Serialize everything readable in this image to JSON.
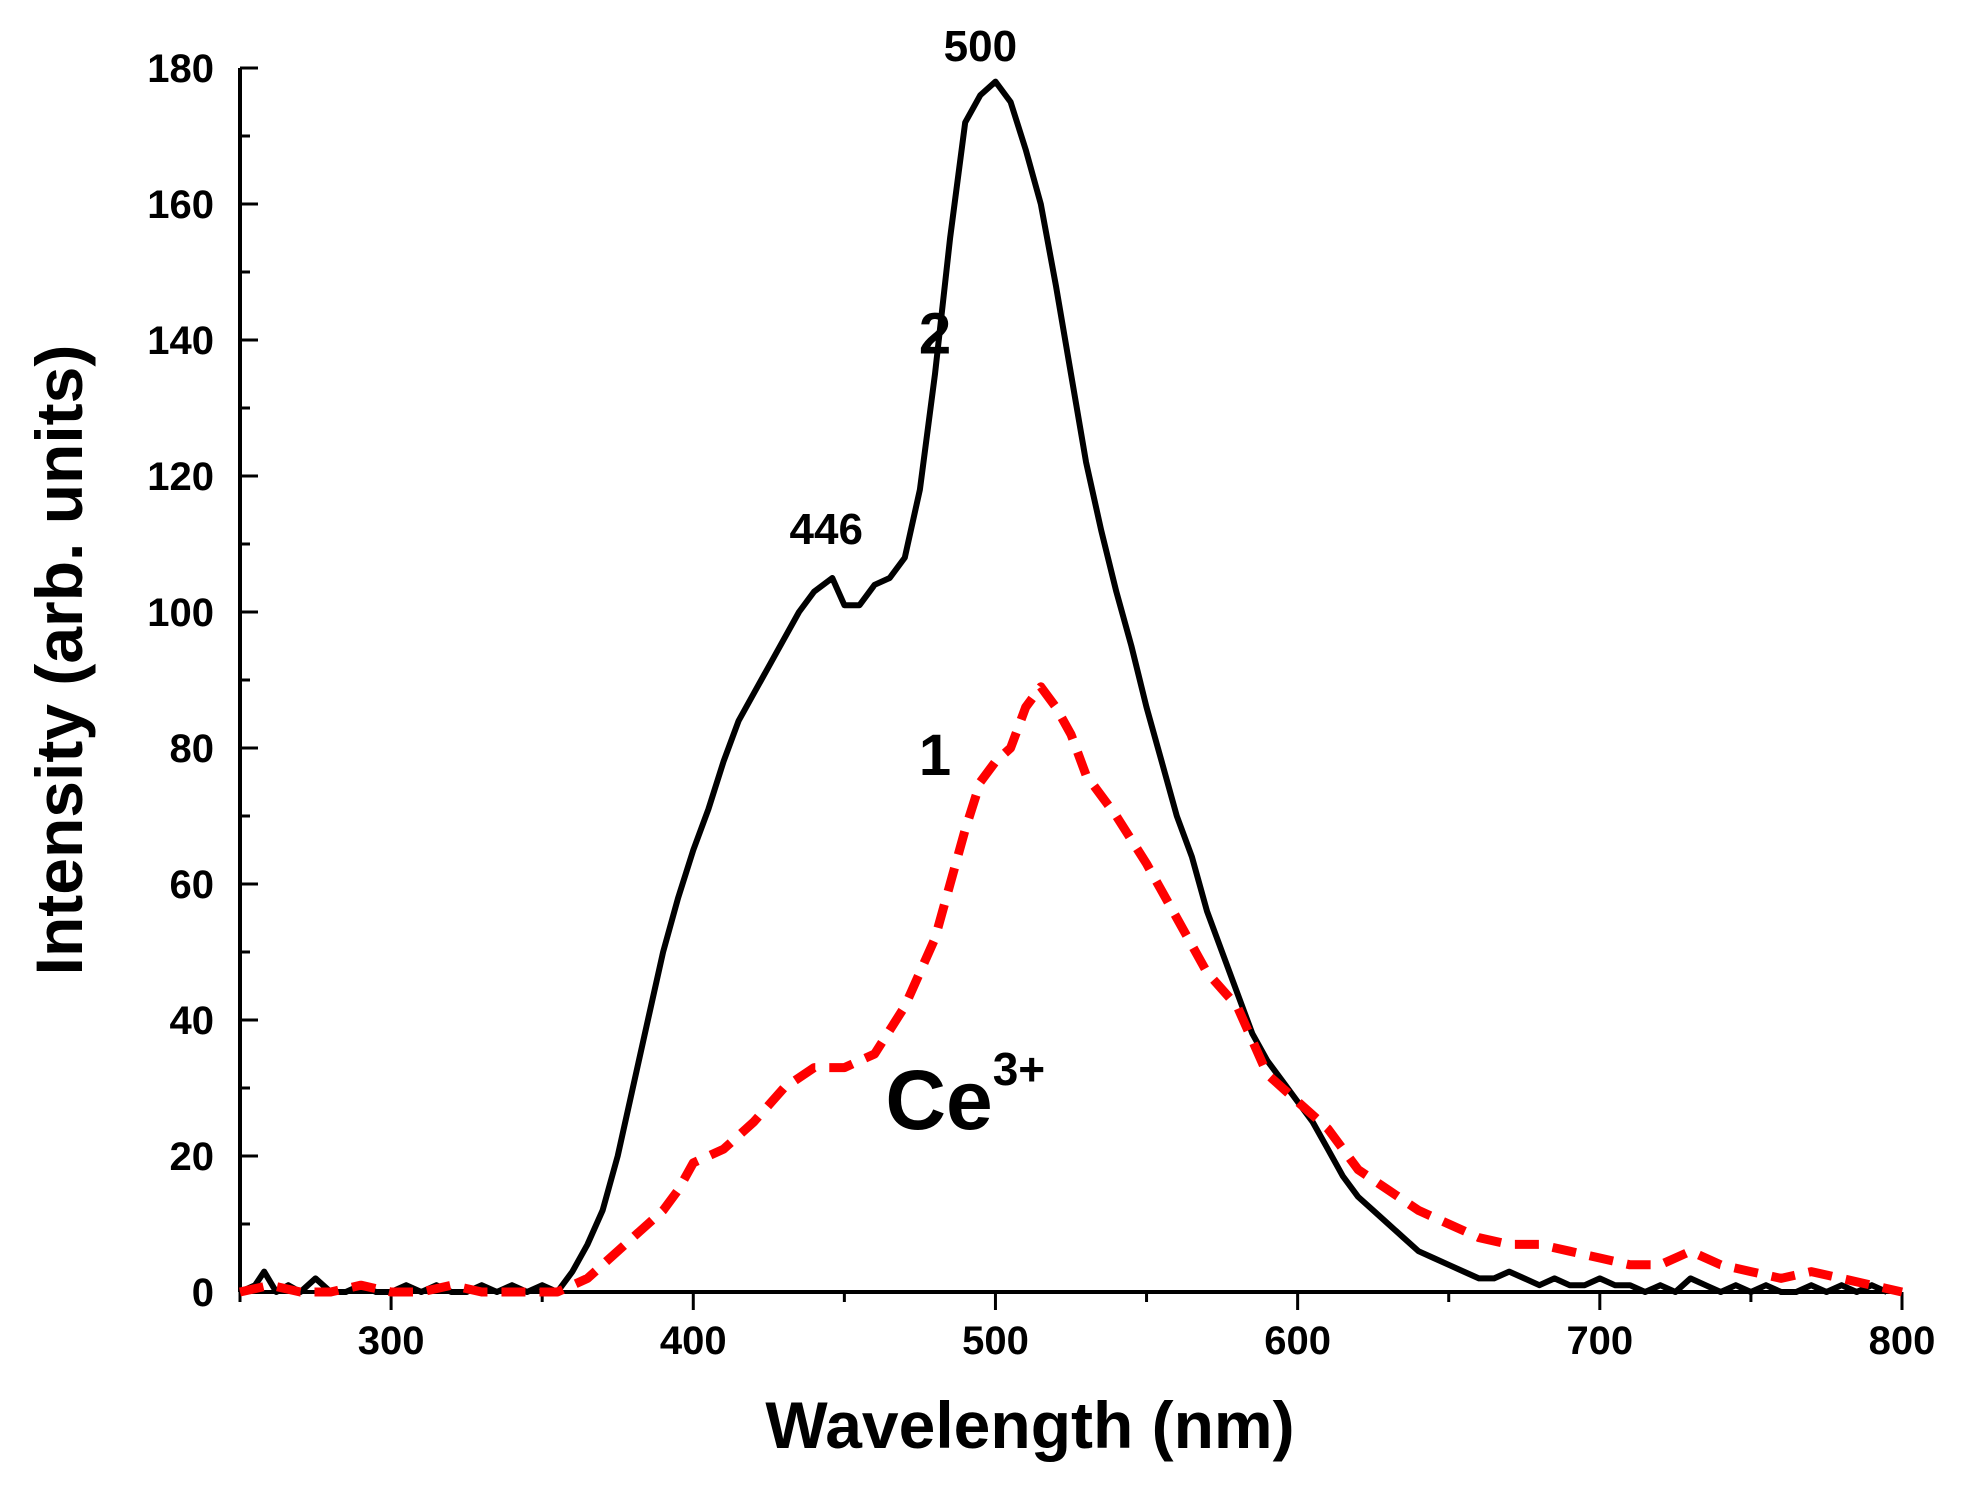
{
  "chart_data": {
    "type": "line",
    "title": "",
    "xlabel": "Wavelength (nm)",
    "ylabel": "Intensity (arb. units)",
    "xlim": [
      250,
      800
    ],
    "ylim": [
      0,
      180
    ],
    "x_ticks": [
      300,
      400,
      500,
      600,
      700,
      800
    ],
    "y_ticks": [
      0,
      20,
      40,
      60,
      80,
      100,
      120,
      140,
      160,
      180
    ],
    "grid": false,
    "series": [
      {
        "name": "2",
        "color": "#000000",
        "style": "solid",
        "x": [
          250,
          255,
          258,
          262,
          266,
          270,
          275,
          280,
          285,
          290,
          295,
          300,
          305,
          310,
          315,
          320,
          325,
          330,
          335,
          340,
          345,
          350,
          355,
          360,
          365,
          370,
          375,
          380,
          385,
          390,
          395,
          400,
          405,
          410,
          415,
          420,
          425,
          430,
          435,
          440,
          446,
          450,
          455,
          460,
          465,
          470,
          475,
          480,
          485,
          490,
          495,
          500,
          505,
          510,
          515,
          520,
          525,
          530,
          535,
          540,
          545,
          550,
          555,
          560,
          565,
          570,
          575,
          580,
          585,
          590,
          595,
          600,
          605,
          610,
          615,
          620,
          625,
          630,
          635,
          640,
          645,
          650,
          655,
          660,
          665,
          670,
          675,
          680,
          685,
          690,
          695,
          700,
          705,
          710,
          715,
          720,
          725,
          730,
          735,
          740,
          745,
          750,
          755,
          760,
          765,
          770,
          775,
          780,
          785,
          790,
          795
        ],
        "y": [
          0,
          1,
          3,
          0,
          1,
          0,
          2,
          0,
          0,
          1,
          0,
          0,
          1,
          0,
          1,
          0,
          0,
          1,
          0,
          1,
          0,
          1,
          0,
          3,
          7,
          12,
          20,
          30,
          40,
          50,
          58,
          65,
          71,
          78,
          84,
          88,
          92,
          96,
          100,
          103,
          105,
          101,
          101,
          104,
          105,
          108,
          118,
          135,
          155,
          172,
          176,
          178,
          175,
          168,
          160,
          148,
          135,
          122,
          112,
          103,
          95,
          86,
          78,
          70,
          64,
          56,
          50,
          44,
          38,
          34,
          31,
          28,
          25,
          21,
          17,
          14,
          12,
          10,
          8,
          6,
          5,
          4,
          3,
          2,
          2,
          3,
          2,
          1,
          2,
          1,
          1,
          2,
          1,
          1,
          0,
          1,
          0,
          2,
          1,
          0,
          1,
          0,
          1,
          0,
          0,
          1,
          0,
          1,
          0,
          1,
          0
        ]
      },
      {
        "name": "1",
        "color": "#ff0000",
        "style": "dashed",
        "x": [
          250,
          260,
          270,
          280,
          290,
          300,
          310,
          320,
          330,
          340,
          350,
          355,
          360,
          365,
          370,
          380,
          390,
          395,
          400,
          410,
          420,
          430,
          440,
          450,
          460,
          470,
          480,
          490,
          495,
          500,
          505,
          510,
          515,
          520,
          525,
          530,
          540,
          550,
          560,
          570,
          580,
          590,
          600,
          610,
          620,
          630,
          640,
          650,
          660,
          670,
          680,
          690,
          700,
          710,
          720,
          730,
          740,
          750,
          760,
          770,
          780,
          790,
          800
        ],
        "y": [
          0,
          1,
          0,
          0,
          1,
          0,
          0,
          1,
          0,
          0,
          0,
          0,
          1,
          2,
          4,
          8,
          12,
          15,
          19,
          21,
          25,
          30,
          33,
          33,
          35,
          42,
          52,
          68,
          75,
          78,
          80,
          86,
          89,
          86,
          82,
          76,
          70,
          63,
          55,
          47,
          42,
          32,
          28,
          24,
          18,
          15,
          12,
          10,
          8,
          7,
          7,
          6,
          5,
          4,
          4,
          6,
          4,
          3,
          2,
          3,
          2,
          1,
          0
        ]
      }
    ],
    "annotations": [
      {
        "text": "500",
        "x": 495,
        "y": 181
      },
      {
        "text": "446",
        "x": 444,
        "y": 110
      },
      {
        "text": "2",
        "x": 480,
        "y": 138
      },
      {
        "text": "1",
        "x": 480,
        "y": 76
      },
      {
        "text": "Ce",
        "sup": "3+",
        "x": 490,
        "y": 24
      }
    ]
  }
}
